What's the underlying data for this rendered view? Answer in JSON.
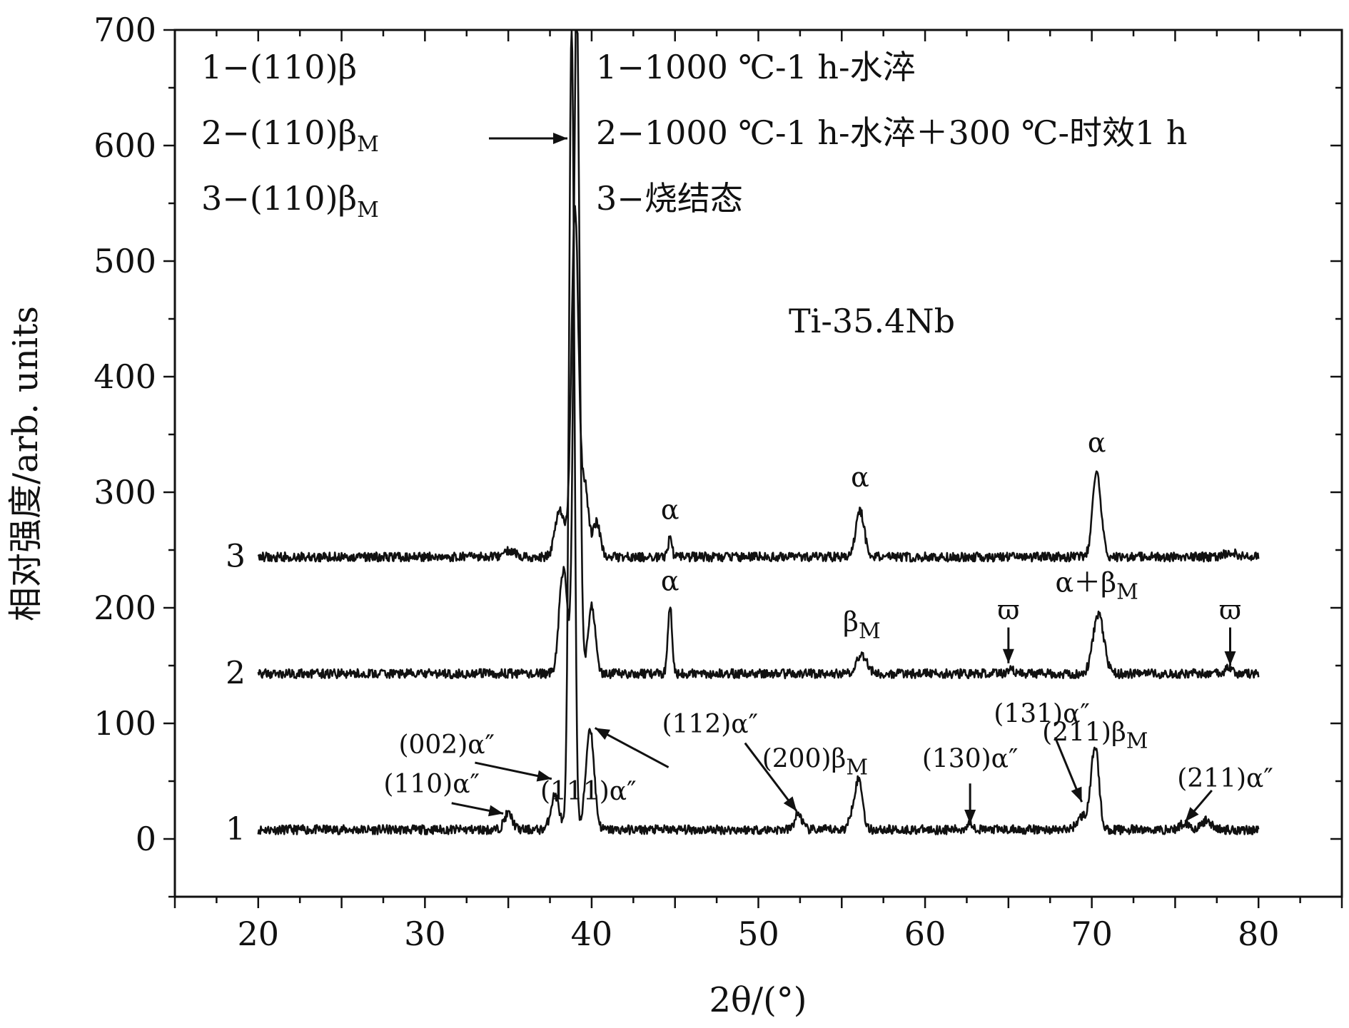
{
  "chart_data": {
    "type": "line",
    "title": "",
    "xlabel": "2θ/(°)",
    "ylabel": "相对强度/arb. units",
    "xlim": [
      15,
      85
    ],
    "ylim": [
      -50,
      700
    ],
    "xticks": [
      20,
      30,
      40,
      50,
      60,
      70,
      80
    ],
    "yticks": [
      0,
      100,
      200,
      300,
      400,
      500,
      600,
      700
    ],
    "grid": false,
    "sample_label": "Ti-35.4Nb",
    "legend_left": [
      {
        "number": "1",
        "text": "−(110)β",
        "sub": ""
      },
      {
        "number": "2",
        "text": "−(110)β",
        "sub": "M"
      },
      {
        "number": "3",
        "text": "−(110)β",
        "sub": "M"
      }
    ],
    "legend_right": [
      {
        "number": "1",
        "text": "−1000 ℃-1 h-水淬"
      },
      {
        "number": "2",
        "text": "−1000 ℃-1 h-水淬＋300 ℃-时效1 h"
      },
      {
        "number": "3",
        "text": "−烧结态"
      }
    ],
    "series": [
      {
        "name": "1",
        "baseline": 8,
        "peaks": [
          {
            "x": 35.0,
            "height": 14,
            "width": 0.35
          },
          {
            "x": 37.8,
            "height": 30,
            "width": 0.35
          },
          {
            "x": 38.8,
            "height": 700,
            "width": 0.22
          },
          {
            "x": 39.9,
            "height": 88,
            "width": 0.35
          },
          {
            "x": 52.4,
            "height": 14,
            "width": 0.3
          },
          {
            "x": 55.8,
            "height": 24,
            "width": 0.35
          },
          {
            "x": 56.1,
            "height": 30,
            "width": 0.28
          },
          {
            "x": 62.7,
            "height": 6,
            "width": 0.3
          },
          {
            "x": 69.5,
            "height": 12,
            "width": 0.5
          },
          {
            "x": 70.2,
            "height": 72,
            "width": 0.32
          },
          {
            "x": 75.6,
            "height": 6,
            "width": 0.4
          },
          {
            "x": 76.9,
            "height": 8,
            "width": 0.4
          }
        ]
      },
      {
        "name": "2",
        "baseline": 143,
        "peaks": [
          {
            "x": 38.3,
            "height": 90,
            "width": 0.35
          },
          {
            "x": 39.1,
            "height": 590,
            "width": 0.24
          },
          {
            "x": 40.0,
            "height": 60,
            "width": 0.3
          },
          {
            "x": 44.7,
            "height": 60,
            "width": 0.18
          },
          {
            "x": 56.2,
            "height": 16,
            "width": 0.45
          },
          {
            "x": 65.1,
            "height": 4,
            "width": 0.3
          },
          {
            "x": 70.4,
            "height": 52,
            "width": 0.45
          },
          {
            "x": 78.2,
            "height": 5,
            "width": 0.3
          }
        ]
      },
      {
        "name": "3",
        "baseline": 244,
        "peaks": [
          {
            "x": 35.1,
            "height": 6,
            "width": 0.5
          },
          {
            "x": 38.1,
            "height": 40,
            "width": 0.4
          },
          {
            "x": 39.0,
            "height": 300,
            "width": 0.3
          },
          {
            "x": 39.6,
            "height": 60,
            "width": 0.3
          },
          {
            "x": 40.3,
            "height": 30,
            "width": 0.3
          },
          {
            "x": 44.7,
            "height": 16,
            "width": 0.16
          },
          {
            "x": 56.1,
            "height": 40,
            "width": 0.35
          },
          {
            "x": 70.3,
            "height": 75,
            "width": 0.35
          },
          {
            "x": 78.3,
            "height": 4,
            "width": 0.5
          }
        ]
      }
    ],
    "series_labels": [
      {
        "text": "1",
        "y": 8
      },
      {
        "text": "2",
        "y": 143
      },
      {
        "text": "3",
        "y": 244
      }
    ],
    "peak_labels": [
      {
        "text": "α",
        "sub": "",
        "x": 44.7,
        "y": 277
      },
      {
        "text": "α",
        "sub": "",
        "x": 56.1,
        "y": 305
      },
      {
        "text": "α",
        "sub": "",
        "x": 70.3,
        "y": 335
      },
      {
        "text": "α",
        "sub": "",
        "x": 44.7,
        "y": 215
      },
      {
        "text": "β",
        "sub": "M",
        "x": 56.2,
        "y": 180
      },
      {
        "text": "α＋β",
        "sub": "M",
        "x": 70.3,
        "y": 214
      },
      {
        "text": "ϖ",
        "sub": "",
        "x": 65.0,
        "y": 190
      },
      {
        "text": "ϖ",
        "sub": "",
        "x": 78.3,
        "y": 190
      }
    ],
    "annotations_1": [
      {
        "text": "(110)α″",
        "sub": "",
        "x": 30.4,
        "y": 40
      },
      {
        "text": "(002)α″",
        "sub": "",
        "x": 31.3,
        "y": 74
      },
      {
        "text": "(111)α″",
        "sub": "",
        "x": 39.8,
        "y": 34
      },
      {
        "text": "(112)α″",
        "sub": "",
        "x": 47.1,
        "y": 92
      },
      {
        "text": "(200)β",
        "sub": "M",
        "x": 53.4,
        "y": 62
      },
      {
        "text": "(130)α″",
        "sub": "",
        "x": 62.7,
        "y": 62
      },
      {
        "text": "(131)α″",
        "sub": "",
        "x": 67.0,
        "y": 101
      },
      {
        "text": "(211)β",
        "sub": "M",
        "x": 70.2,
        "y": 85
      },
      {
        "text": "(211)α″",
        "sub": "",
        "x": 78.0,
        "y": 45
      }
    ]
  }
}
